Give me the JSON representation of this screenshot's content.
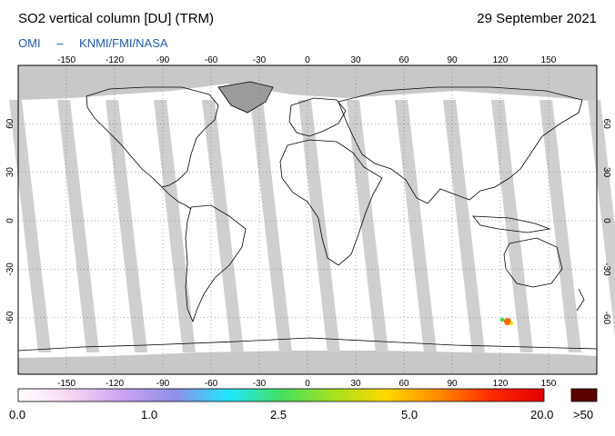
{
  "header": {
    "title": "SO2 vertical column [DU] (TRM)",
    "date": "29 September 2021",
    "credit_parts": [
      "OMI",
      "–",
      "KNMI/FMI/NASA"
    ]
  },
  "map": {
    "lon_ticks": [
      "-150",
      "-120",
      "-90",
      "-60",
      "-30",
      "0",
      "30",
      "60",
      "90",
      "120",
      "150"
    ],
    "lat_ticks": [
      "60",
      "30",
      "0",
      "-30",
      "-60"
    ],
    "colors": {
      "ocean": "#ffffff",
      "land_outline": "#000000",
      "swath_gap": "#cfcfcf",
      "missing_land": "#9b9b9b",
      "polar_no_data": "#c8c8c8",
      "hotspot": "#ff6a00"
    }
  },
  "colorbar": {
    "labels": [
      "0.0",
      "1.0",
      "2.5",
      "5.0",
      "20.0"
    ],
    "overflow_label": ">50",
    "overflow_color": "#5a0000",
    "gradient": [
      "#ffffff",
      "#f6d6f3",
      "#c9a2f0",
      "#8f8fe8",
      "#1fe6ff",
      "#44e060",
      "#a6e020",
      "#ffd800",
      "#ff8a00",
      "#ff2a00",
      "#e00000"
    ]
  }
}
